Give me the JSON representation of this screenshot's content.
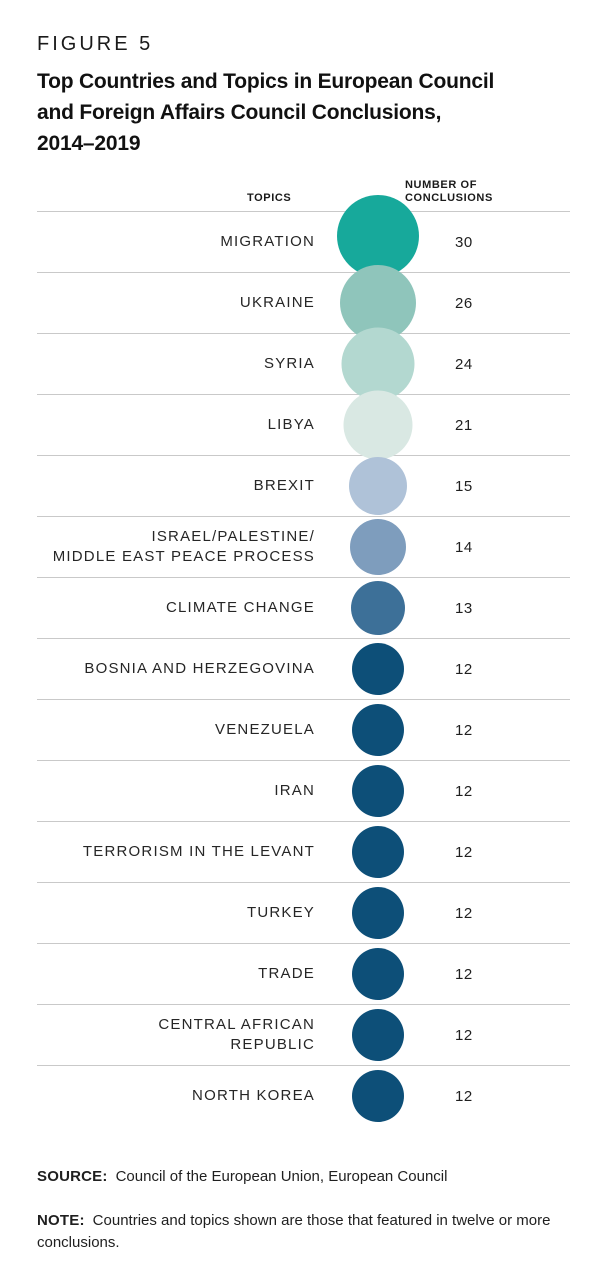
{
  "figure": {
    "label": "FIGURE 5",
    "title": "Top Countries and Topics in European Council\nand Foreign Affairs Council Conclusions,\n2014–2019"
  },
  "columns": {
    "topics": "TOPICS",
    "number": "NUMBER OF\nCONCLUSIONS"
  },
  "chart_data": {
    "type": "bubble",
    "title": "Top Countries and Topics in European Council and Foreign Affairs Council Conclusions, 2014–2019",
    "value_label": "NUMBER OF CONCLUSIONS",
    "sizing": "area-proportional",
    "categories": [
      "MIGRATION",
      "UKRAINE",
      "SYRIA",
      "LIBYA",
      "BREXIT",
      "ISRAEL/PALESTINE/\nMIDDLE EAST PEACE PROCESS",
      "CLIMATE CHANGE",
      "BOSNIA AND HERZEGOVINA",
      "VENEZUELA",
      "IRAN",
      "TERRORISM IN THE LEVANT",
      "TURKEY",
      "TRADE",
      "CENTRAL AFRICAN\nREPUBLIC",
      "NORTH KOREA"
    ],
    "values": [
      30,
      26,
      24,
      21,
      15,
      14,
      13,
      12,
      12,
      12,
      12,
      12,
      12,
      12,
      12
    ],
    "colors": [
      "#17A99B",
      "#8FC5BB",
      "#B3D8D0",
      "#D9E8E3",
      "#AFC2D8",
      "#7E9DBD",
      "#3D7098",
      "#0D4F78",
      "#0D4F78",
      "#0D4F78",
      "#0D4F78",
      "#0D4F78",
      "#0D4F78",
      "#0D4F78",
      "#0D4F78"
    ]
  },
  "footer": {
    "source_label": "SOURCE:",
    "source_text": "Council of the European Union, European Council",
    "note_label": "NOTE:",
    "note_text": "Countries and topics shown are those that featured in twelve or more conclusions."
  }
}
